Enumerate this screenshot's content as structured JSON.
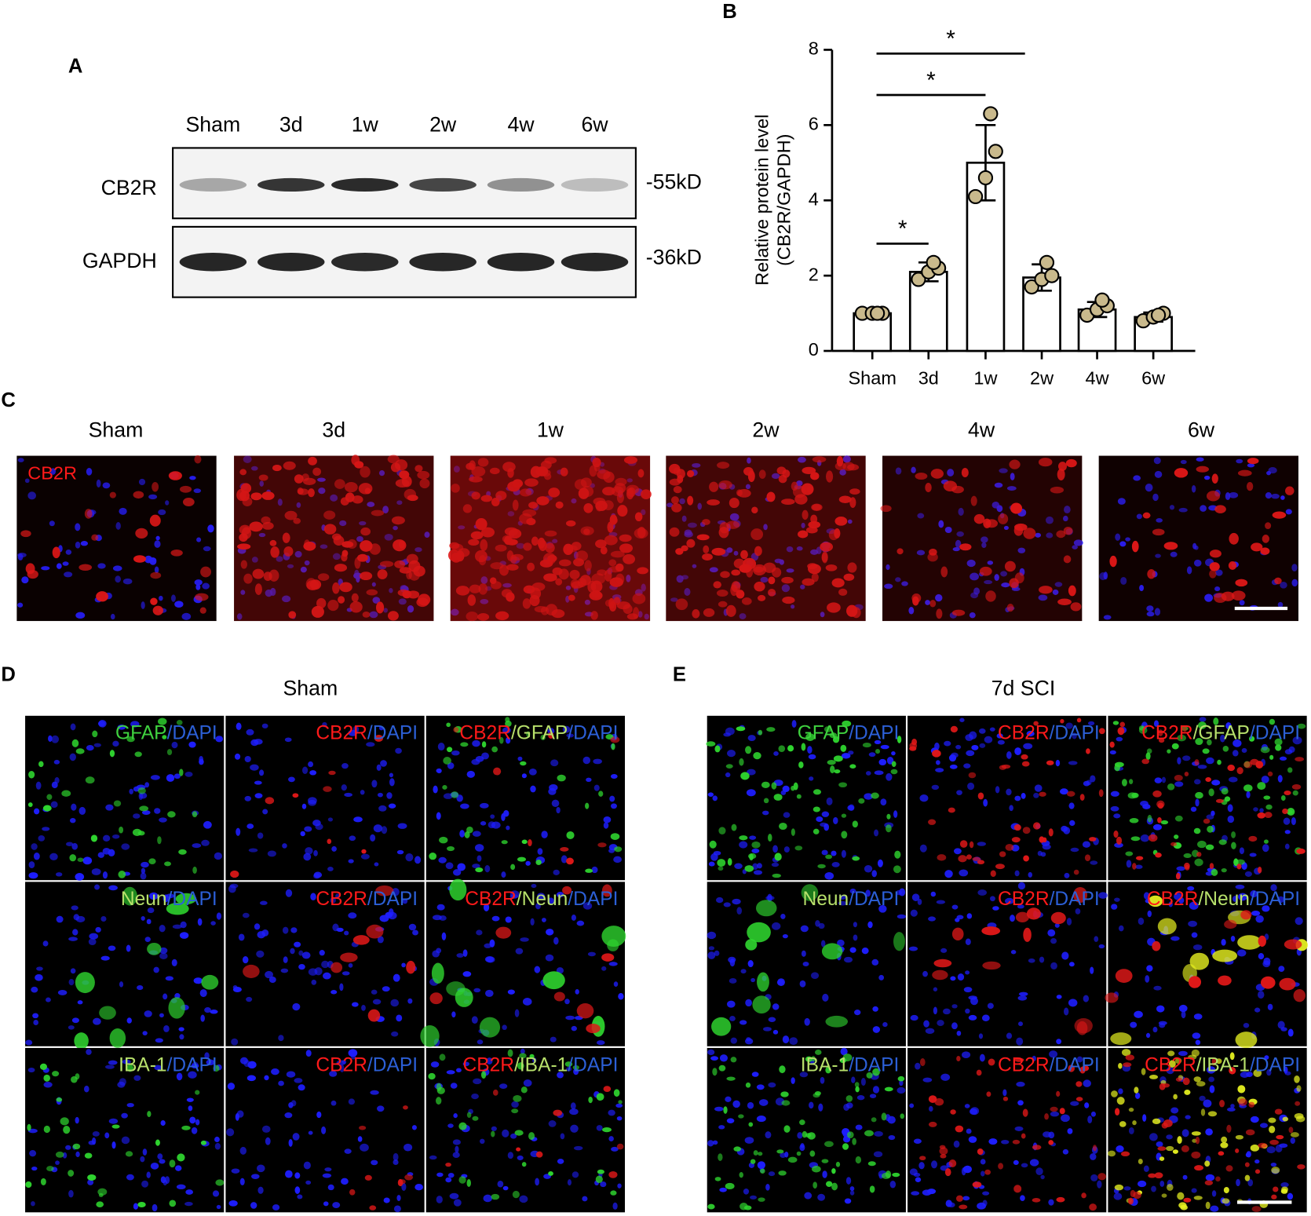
{
  "panel_a": {
    "label": "A",
    "lanes": [
      "Sham",
      "3d",
      "1w",
      "2w",
      "4w",
      "6w"
    ],
    "rows": [
      {
        "name": "CB2R",
        "size": "-55kD"
      },
      {
        "name": "GAPDH",
        "size": "-36kD"
      }
    ]
  },
  "chart_data": {
    "type": "bar",
    "label": "B",
    "y_label": [
      "Relative protein level",
      "(CB2R/GAPDH)"
    ],
    "categories": [
      "Sham",
      "3d",
      "1w",
      "2w",
      "4w",
      "6w"
    ],
    "values": [
      1,
      2.1,
      5,
      1.95,
      1.1,
      0.9
    ],
    "errors": [
      0.05,
      0.25,
      1.0,
      0.35,
      0.2,
      0.12
    ],
    "points": [
      [
        1,
        1,
        1,
        1
      ],
      [
        1.9,
        2.1,
        2.2,
        2.35
      ],
      [
        4.1,
        4.6,
        5.3,
        6.3
      ],
      [
        1.7,
        1.9,
        2.0,
        2.35
      ],
      [
        0.95,
        1.1,
        1.2,
        1.35
      ],
      [
        0.8,
        0.9,
        1.0,
        0.95
      ]
    ],
    "point_color": "#c9b98c",
    "bar_color": "#ffffff",
    "ylim": [
      0,
      8
    ],
    "yticks": [
      0,
      2,
      4,
      6,
      8
    ],
    "significance": [
      {
        "from": 0,
        "to": 1,
        "label": "*"
      },
      {
        "from": 0,
        "to": 2,
        "label": "*"
      },
      {
        "from": 0,
        "to": 3,
        "label": "*"
      }
    ]
  },
  "panel_c": {
    "label": "C",
    "lanes": [
      "Sham",
      "3d",
      "1w",
      "2w",
      "4w",
      "6w"
    ],
    "stain": "CB2R",
    "stain_color": "#ff1a1a"
  },
  "panel_d": {
    "label": "D",
    "title": "Sham",
    "cells": [
      [
        [
          {
            "text": "GFAP",
            "color": "#3fd13f"
          },
          {
            "text": "/DAPI",
            "color": "#2c5fd6"
          }
        ],
        [
          {
            "text": "CB2R",
            "color": "#ff1a1a"
          },
          {
            "text": "/DAPI",
            "color": "#2c5fd6"
          }
        ],
        [
          {
            "text": "CB2R",
            "color": "#ff1a1a"
          },
          {
            "text": "/GFAP",
            "color": "#b7e06b"
          },
          {
            "text": "/DAPI",
            "color": "#2c5fd6"
          }
        ]
      ],
      [
        [
          {
            "text": "Neun",
            "color": "#b7e06b"
          },
          {
            "text": "/DAPI",
            "color": "#2c5fd6"
          }
        ],
        [
          {
            "text": "CB2R",
            "color": "#ff1a1a"
          },
          {
            "text": "/DAPI",
            "color": "#2c5fd6"
          }
        ],
        [
          {
            "text": "CB2R",
            "color": "#ff1a1a"
          },
          {
            "text": "/Neun",
            "color": "#b7e06b"
          },
          {
            "text": "/DAPI",
            "color": "#2c5fd6"
          }
        ]
      ],
      [
        [
          {
            "text": "IBA-1",
            "color": "#b7e06b"
          },
          {
            "text": "/DAPI",
            "color": "#2c5fd6"
          }
        ],
        [
          {
            "text": "CB2R",
            "color": "#ff1a1a"
          },
          {
            "text": "/DAPI",
            "color": "#2c5fd6"
          }
        ],
        [
          {
            "text": "CB2R",
            "color": "#ff1a1a"
          },
          {
            "text": "/IBA-1",
            "color": "#b7e06b"
          },
          {
            "text": "/DAPI",
            "color": "#2c5fd6"
          }
        ]
      ]
    ]
  },
  "panel_e": {
    "label": "E",
    "title": "7d SCI",
    "cells": [
      [
        [
          {
            "text": "GFAP",
            "color": "#3fd13f"
          },
          {
            "text": "/DAPI",
            "color": "#2c5fd6"
          }
        ],
        [
          {
            "text": "CB2R",
            "color": "#ff1a1a"
          },
          {
            "text": "/DAPI",
            "color": "#2c5fd6"
          }
        ],
        [
          {
            "text": "CB2R",
            "color": "#ff1a1a"
          },
          {
            "text": "/GFAP",
            "color": "#b7e06b"
          },
          {
            "text": "/DAPI",
            "color": "#2c5fd6"
          }
        ]
      ],
      [
        [
          {
            "text": "Neun",
            "color": "#b7e06b"
          },
          {
            "text": "/DAPI",
            "color": "#2c5fd6"
          }
        ],
        [
          {
            "text": "CB2R",
            "color": "#ff1a1a"
          },
          {
            "text": "/DAPI",
            "color": "#2c5fd6"
          }
        ],
        [
          {
            "text": "CB2R",
            "color": "#ff1a1a"
          },
          {
            "text": "/Neun",
            "color": "#b7e06b"
          },
          {
            "text": "/DAPI",
            "color": "#2c5fd6"
          }
        ]
      ],
      [
        [
          {
            "text": "IBA-1",
            "color": "#b7e06b"
          },
          {
            "text": "/DAPI",
            "color": "#2c5fd6"
          }
        ],
        [
          {
            "text": "CB2R",
            "color": "#ff1a1a"
          },
          {
            "text": "/DAPI",
            "color": "#2c5fd6"
          }
        ],
        [
          {
            "text": "CB2R",
            "color": "#ff1a1a"
          },
          {
            "text": "/IBA-1",
            "color": "#b7e06b"
          },
          {
            "text": "/DAPI",
            "color": "#2c5fd6"
          }
        ]
      ]
    ]
  }
}
